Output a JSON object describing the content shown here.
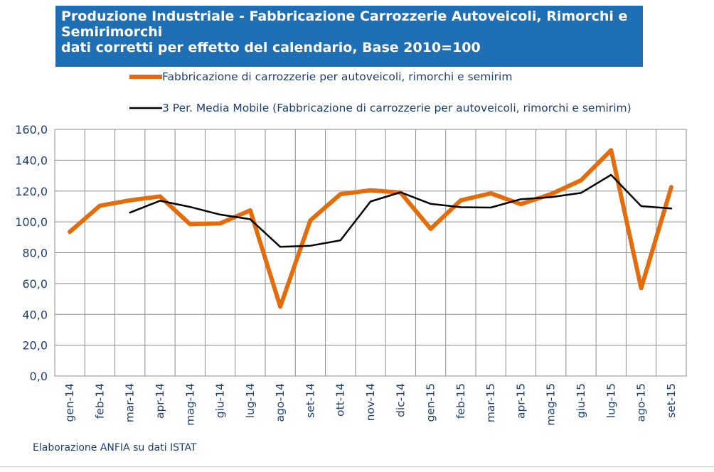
{
  "title": {
    "line1": "Produzione Industriale - Fabbricazione Carrozzerie Autoveicoli, Rimorchi e Semirimorchi",
    "line2": "dati corretti per effetto del calendario, Base 2010=100"
  },
  "footer": "Elaborazione ANFIA su dati ISTAT",
  "chart_data": {
    "type": "line",
    "categories": [
      "gen-14",
      "feb-14",
      "mar-14",
      "apr-14",
      "mag-14",
      "giu-14",
      "lug-14",
      "ago-14",
      "set-14",
      "ott-14",
      "nov-14",
      "dic-14",
      "gen-15",
      "feb-15",
      "mar-15",
      "apr-15",
      "mag-15",
      "giu-15",
      "lug-15",
      "ago-15",
      "set-15"
    ],
    "series": [
      {
        "name": "Fabbricazione di carrozzerie per autoveicoli, rimorchi e semirim",
        "color": "#e46c0a",
        "values": [
          93.5,
          110.5,
          114.0,
          116.5,
          98.5,
          99.0,
          107.5,
          45.0,
          101.0,
          118.0,
          120.5,
          119.0,
          95.5,
          114.0,
          118.5,
          111.5,
          118.0,
          127.0,
          146.5,
          57.0,
          122.5
        ]
      },
      {
        "name": "3 Per. Media Mobile (Fabbricazione di carrozzerie per autoveicoli, rimorchi e semirim)",
        "color": "#000000",
        "values": [
          null,
          null,
          106.0,
          113.7,
          109.7,
          104.7,
          101.7,
          83.8,
          84.5,
          88.0,
          113.2,
          119.2,
          111.7,
          109.5,
          109.3,
          114.7,
          116.0,
          118.8,
          130.5,
          110.2,
          108.7
        ]
      }
    ],
    "yticks": [
      "0,0",
      "20,0",
      "40,0",
      "60,0",
      "80,0",
      "100,0",
      "120,0",
      "140,0",
      "160,0"
    ],
    "ylim": [
      0,
      160
    ],
    "grid": true,
    "legend": "top"
  }
}
